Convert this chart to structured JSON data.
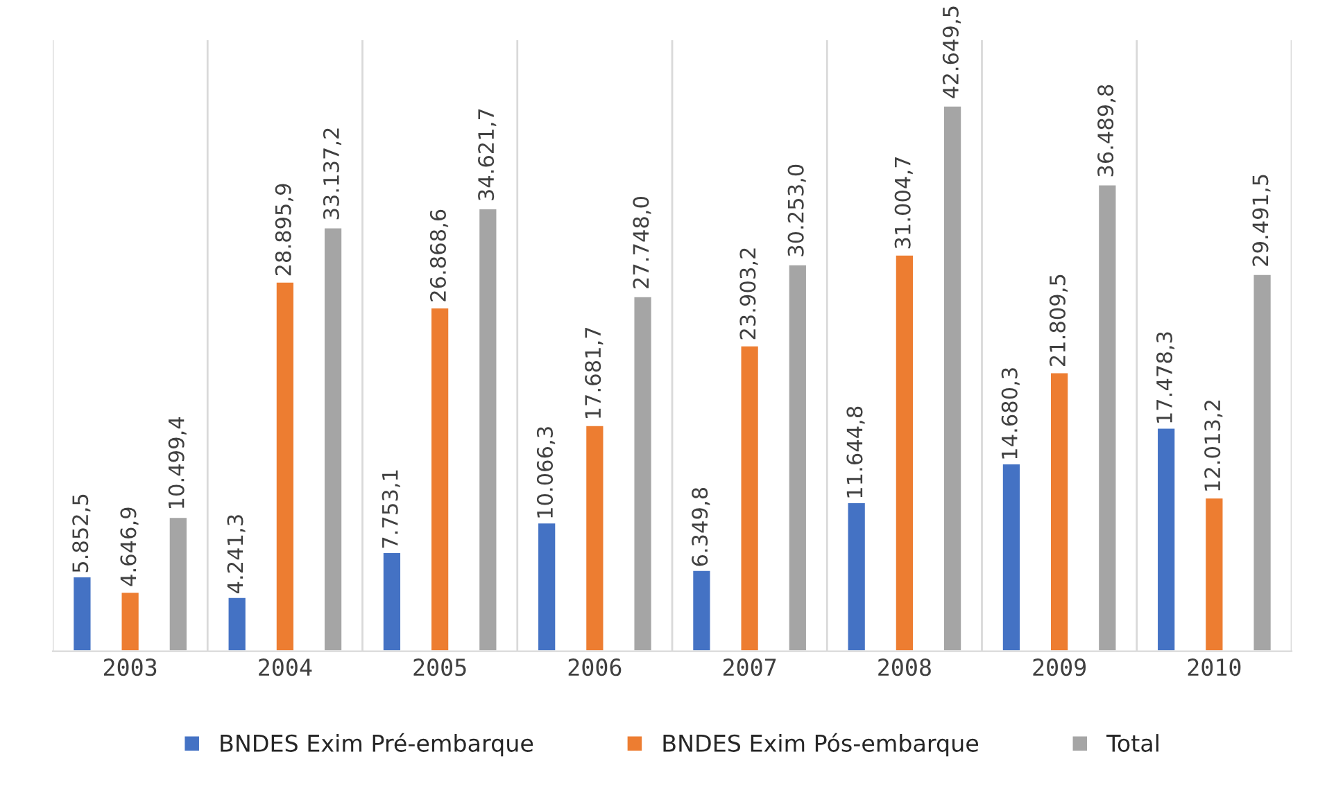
{
  "chart_data": {
    "type": "bar",
    "categories": [
      "2003",
      "2004",
      "2005",
      "2006",
      "2007",
      "2008",
      "2009",
      "2010"
    ],
    "series": [
      {
        "name": "BNDES Exim Pré-embarque",
        "color": "#4472c4",
        "values": [
          5852.5,
          4241.3,
          7753.1,
          10066.3,
          6349.8,
          11644.8,
          14680.3,
          17478.3
        ],
        "value_labels": [
          "5.852,5",
          "4.241,3",
          "7.753,1",
          "10.066,3",
          "6.349,8",
          "11.644,8",
          "14.680,3",
          "17.478,3"
        ]
      },
      {
        "name": "BNDES Exim Pós-embarque",
        "color": "#ed7d31",
        "values": [
          4646.9,
          28895.9,
          26868.6,
          17681.7,
          23903.2,
          31004.7,
          21809.5,
          12013.2
        ],
        "value_labels": [
          "4.646,9",
          "28.895,9",
          "26.868,6",
          "17.681,7",
          "23.903,2",
          "31.004,7",
          "21.809,5",
          "12.013,2"
        ]
      },
      {
        "name": "Total",
        "color": "#a5a5a5",
        "values": [
          10499.4,
          33137.2,
          34621.7,
          27748.0,
          30253.0,
          42649.5,
          36489.8,
          29491.5
        ],
        "value_labels": [
          "10.499,4",
          "33.137,2",
          "34.621,7",
          "27.748,0",
          "30.253,0",
          "42.649,5",
          "36.489,8",
          "29.491,5"
        ]
      }
    ],
    "grid": "x",
    "legend": "bottom",
    "tick_labels": "x"
  }
}
